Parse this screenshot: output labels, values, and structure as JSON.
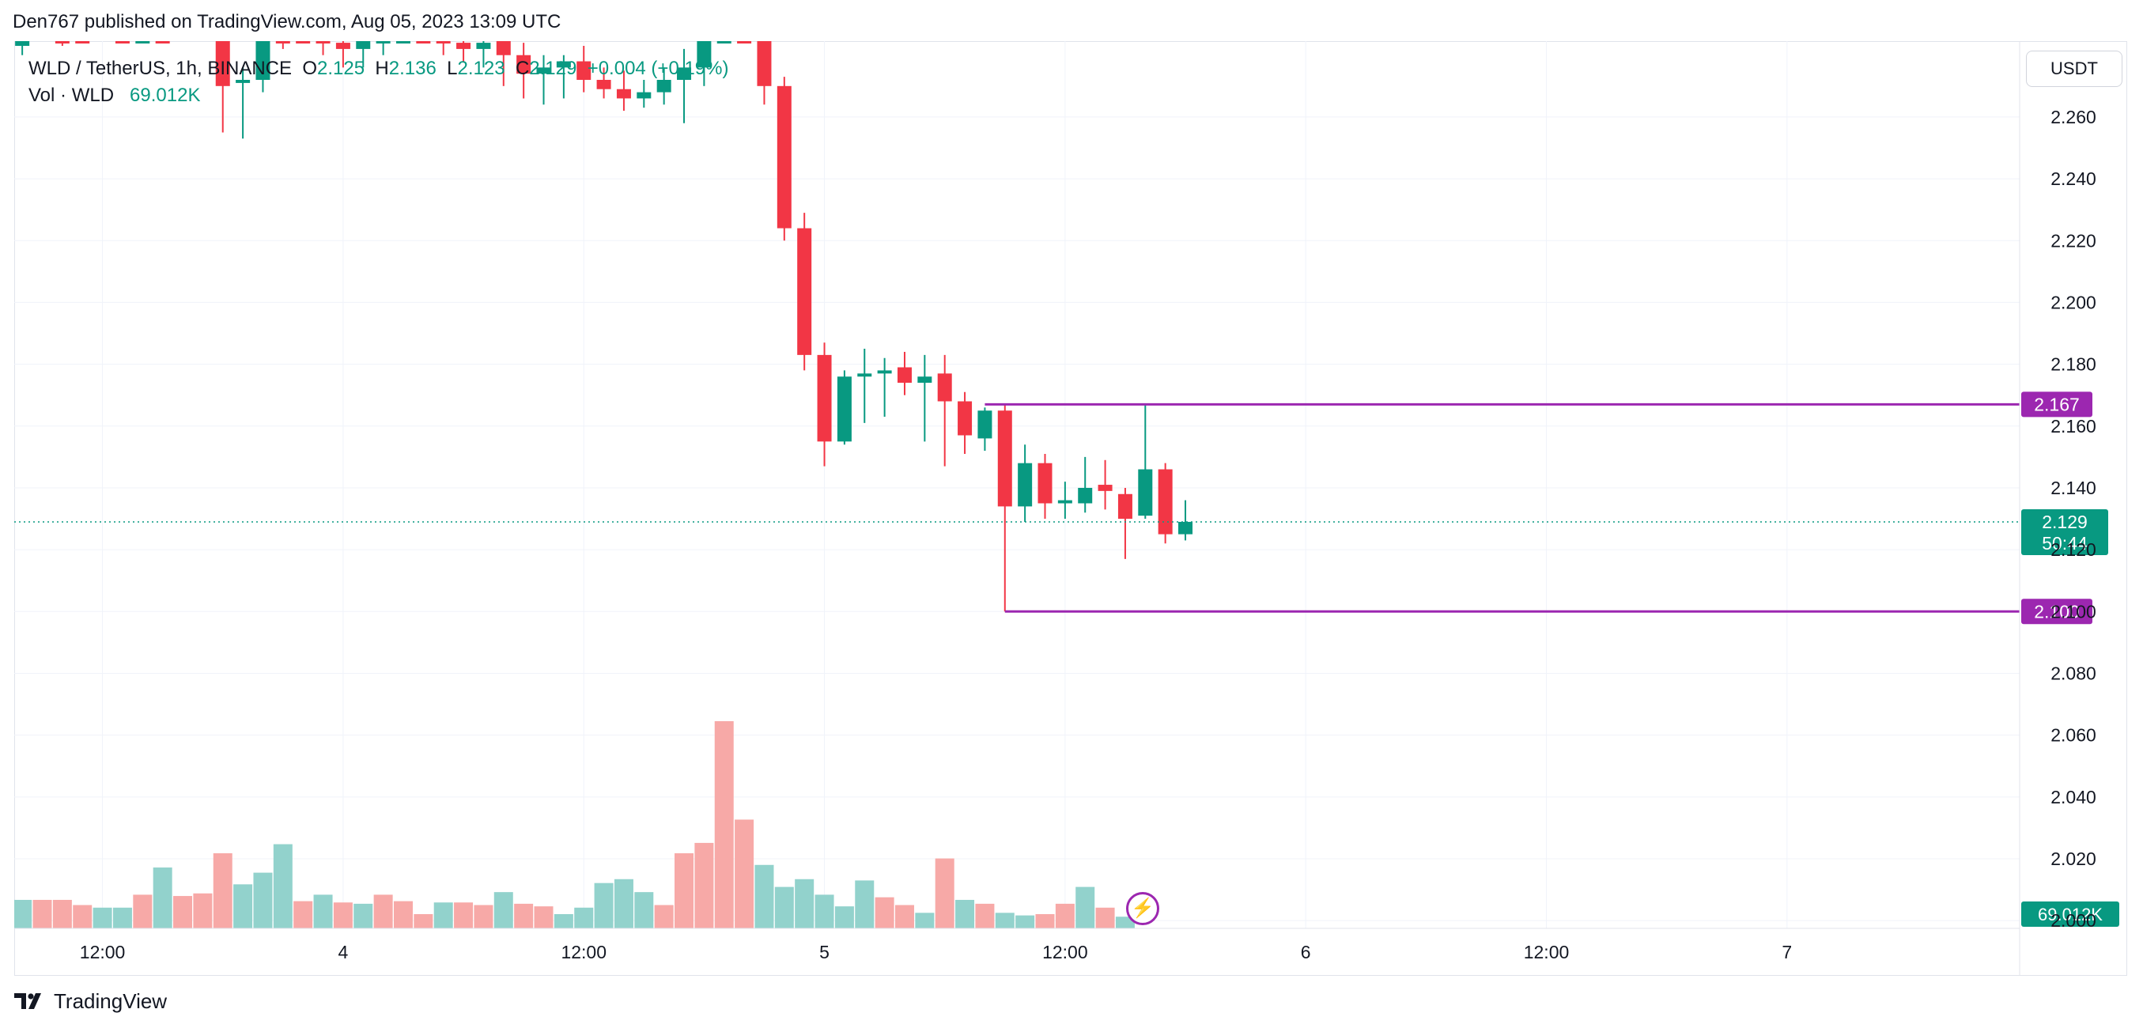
{
  "header": {
    "published_text": "Den767 published on TradingView.com, Aug 05, 2023 13:09 UTC"
  },
  "legend": {
    "symbol": "WLD / TetherUS, 1h, BINANCE",
    "o_label": "O",
    "o_value": "2.125",
    "h_label": "H",
    "h_value": "2.136",
    "l_label": "L",
    "l_value": "2.123",
    "c_label": "C",
    "c_value": "2.129",
    "change": "+0.004 (+0.19%)",
    "vol_label": "Vol · WLD",
    "vol_value": "69.012K"
  },
  "currency_button": "USDT",
  "footer": {
    "brand": "TradingView"
  },
  "colors": {
    "up": "#089981",
    "down": "#f23645",
    "vol_up": "#92d2cc",
    "vol_down": "#f7a9a7",
    "level": "#9c27b0",
    "grid": "#f0f3fa",
    "text": "#131722"
  },
  "icons": {
    "logo": "tradingview-logo-icon",
    "bolt": "lightning-bolt-icon"
  },
  "chart_data": {
    "type": "candlestick",
    "y_axis": {
      "ticks": [
        "2.000",
        "2.020",
        "2.040",
        "2.060",
        "2.080",
        "2.100",
        "2.120",
        "2.140",
        "2.160",
        "2.180",
        "2.200",
        "2.220",
        "2.240",
        "2.260"
      ],
      "tick_values": [
        2.0,
        2.02,
        2.04,
        2.06,
        2.08,
        2.1,
        2.12,
        2.14,
        2.16,
        2.18,
        2.2,
        2.22,
        2.24,
        2.26
      ],
      "range": [
        1.998,
        2.283
      ]
    },
    "x_axis": {
      "labels": [
        "12:00",
        "4",
        "12:00",
        "5",
        "12:00",
        "6",
        "12:00",
        "7"
      ],
      "label_hours": [
        12,
        24,
        36,
        48,
        60,
        72,
        84,
        96
      ],
      "range_hours": [
        7.6,
        107.6
      ]
    },
    "candles": [
      {
        "t": 8,
        "o": 2.283,
        "h": 2.288,
        "l": 2.28,
        "c": 2.285
      },
      {
        "t": 10,
        "o": 2.29,
        "h": 2.294,
        "l": 2.283,
        "c": 2.288
      },
      {
        "t": 11,
        "o": 2.296,
        "h": 2.298,
        "l": 2.289,
        "c": 2.292
      },
      {
        "t": 13,
        "o": 2.293,
        "h": 2.297,
        "l": 2.286,
        "c": 2.29
      },
      {
        "t": 14,
        "o": 2.293,
        "h": 2.3,
        "l": 2.289,
        "c": 2.296
      },
      {
        "t": 15,
        "o": 2.297,
        "h": 2.3,
        "l": 2.288,
        "c": 2.293
      },
      {
        "t": 18,
        "o": 2.298,
        "h": 2.3,
        "l": 2.255,
        "c": 2.27
      },
      {
        "t": 19,
        "o": 2.271,
        "h": 2.276,
        "l": 2.253,
        "c": 2.272
      },
      {
        "t": 20,
        "o": 2.272,
        "h": 2.3,
        "l": 2.268,
        "c": 2.296
      },
      {
        "t": 21,
        "o": 2.298,
        "h": 2.3,
        "l": 2.282,
        "c": 2.29
      },
      {
        "t": 22,
        "o": 2.29,
        "h": 2.296,
        "l": 2.284,
        "c": 2.288
      },
      {
        "t": 23,
        "o": 2.288,
        "h": 2.294,
        "l": 2.28,
        "c": 2.284
      },
      {
        "t": 24,
        "o": 2.284,
        "h": 2.292,
        "l": 2.276,
        "c": 2.282
      },
      {
        "t": 25,
        "o": 2.282,
        "h": 2.29,
        "l": 2.276,
        "c": 2.286
      },
      {
        "t": 26,
        "o": 2.286,
        "h": 2.294,
        "l": 2.28,
        "c": 2.29
      },
      {
        "t": 27,
        "o": 2.29,
        "h": 2.298,
        "l": 2.286,
        "c": 2.294
      },
      {
        "t": 28,
        "o": 2.294,
        "h": 2.3,
        "l": 2.288,
        "c": 2.29
      },
      {
        "t": 29,
        "o": 2.29,
        "h": 2.296,
        "l": 2.28,
        "c": 2.284
      },
      {
        "t": 30,
        "o": 2.284,
        "h": 2.288,
        "l": 2.278,
        "c": 2.282
      },
      {
        "t": 31,
        "o": 2.282,
        "h": 2.288,
        "l": 2.276,
        "c": 2.284
      },
      {
        "t": 32,
        "o": 2.286,
        "h": 2.292,
        "l": 2.27,
        "c": 2.28
      },
      {
        "t": 33,
        "o": 2.28,
        "h": 2.284,
        "l": 2.266,
        "c": 2.274
      },
      {
        "t": 34,
        "o": 2.274,
        "h": 2.28,
        "l": 2.264,
        "c": 2.276
      },
      {
        "t": 35,
        "o": 2.276,
        "h": 2.28,
        "l": 2.266,
        "c": 2.278
      },
      {
        "t": 36,
        "o": 2.278,
        "h": 2.283,
        "l": 2.268,
        "c": 2.272
      },
      {
        "t": 37,
        "o": 2.272,
        "h": 2.276,
        "l": 2.266,
        "c": 2.269
      },
      {
        "t": 38,
        "o": 2.269,
        "h": 2.275,
        "l": 2.262,
        "c": 2.266
      },
      {
        "t": 39,
        "o": 2.266,
        "h": 2.272,
        "l": 2.263,
        "c": 2.268
      },
      {
        "t": 40,
        "o": 2.268,
        "h": 2.276,
        "l": 2.264,
        "c": 2.272
      },
      {
        "t": 41,
        "o": 2.272,
        "h": 2.282,
        "l": 2.258,
        "c": 2.276
      },
      {
        "t": 42,
        "o": 2.276,
        "h": 2.3,
        "l": 2.27,
        "c": 2.292
      },
      {
        "t": 43,
        "o": 2.292,
        "h": 2.3,
        "l": 2.286,
        "c": 2.298
      },
      {
        "t": 44,
        "o": 2.296,
        "h": 2.3,
        "l": 2.284,
        "c": 2.288
      },
      {
        "t": 45,
        "o": 2.288,
        "h": 2.292,
        "l": 2.264,
        "c": 2.27
      },
      {
        "t": 46,
        "o": 2.27,
        "h": 2.273,
        "l": 2.22,
        "c": 2.224
      },
      {
        "t": 47,
        "o": 2.224,
        "h": 2.229,
        "l": 2.178,
        "c": 2.183
      },
      {
        "t": 48,
        "o": 2.183,
        "h": 2.187,
        "l": 2.147,
        "c": 2.155
      },
      {
        "t": 49,
        "o": 2.155,
        "h": 2.178,
        "l": 2.154,
        "c": 2.176
      },
      {
        "t": 50,
        "o": 2.176,
        "h": 2.185,
        "l": 2.161,
        "c": 2.177
      },
      {
        "t": 51,
        "o": 2.177,
        "h": 2.182,
        "l": 2.163,
        "c": 2.178
      },
      {
        "t": 52,
        "o": 2.179,
        "h": 2.184,
        "l": 2.17,
        "c": 2.174
      },
      {
        "t": 53,
        "o": 2.174,
        "h": 2.183,
        "l": 2.155,
        "c": 2.176
      },
      {
        "t": 54,
        "o": 2.177,
        "h": 2.183,
        "l": 2.147,
        "c": 2.168
      },
      {
        "t": 55,
        "o": 2.168,
        "h": 2.171,
        "l": 2.151,
        "c": 2.157
      },
      {
        "t": 56,
        "o": 2.156,
        "h": 2.166,
        "l": 2.152,
        "c": 2.165
      },
      {
        "t": 57,
        "o": 2.165,
        "h": 2.167,
        "l": 2.1,
        "c": 2.134
      },
      {
        "t": 58,
        "o": 2.134,
        "h": 2.154,
        "l": 2.129,
        "c": 2.148
      },
      {
        "t": 59,
        "o": 2.148,
        "h": 2.151,
        "l": 2.13,
        "c": 2.135
      },
      {
        "t": 60,
        "o": 2.135,
        "h": 2.142,
        "l": 2.13,
        "c": 2.136
      },
      {
        "t": 61,
        "o": 2.135,
        "h": 2.15,
        "l": 2.132,
        "c": 2.14
      },
      {
        "t": 62,
        "o": 2.141,
        "h": 2.149,
        "l": 2.133,
        "c": 2.139
      },
      {
        "t": 63,
        "o": 2.138,
        "h": 2.14,
        "l": 2.117,
        "c": 2.13
      },
      {
        "t": 64,
        "o": 2.131,
        "h": 2.167,
        "l": 2.13,
        "c": 2.146
      },
      {
        "t": 65,
        "o": 2.146,
        "h": 2.148,
        "l": 2.122,
        "c": 2.125
      },
      {
        "t": 66,
        "o": 2.125,
        "h": 2.136,
        "l": 2.123,
        "c": 2.129
      }
    ],
    "volume": [
      {
        "t": 8,
        "v": 2.2,
        "dir": "up"
      },
      {
        "t": 9,
        "v": 2.2,
        "dir": "down"
      },
      {
        "t": 10,
        "v": 2.2,
        "dir": "down"
      },
      {
        "t": 11,
        "v": 1.8,
        "dir": "down"
      },
      {
        "t": 12,
        "v": 1.6,
        "dir": "up"
      },
      {
        "t": 13,
        "v": 1.6,
        "dir": "up"
      },
      {
        "t": 14,
        "v": 2.6,
        "dir": "down"
      },
      {
        "t": 15,
        "v": 4.7,
        "dir": "up"
      },
      {
        "t": 16,
        "v": 2.5,
        "dir": "down"
      },
      {
        "t": 17,
        "v": 2.7,
        "dir": "down"
      },
      {
        "t": 18,
        "v": 5.8,
        "dir": "down"
      },
      {
        "t": 19,
        "v": 3.4,
        "dir": "up"
      },
      {
        "t": 20,
        "v": 4.3,
        "dir": "up"
      },
      {
        "t": 21,
        "v": 6.5,
        "dir": "up"
      },
      {
        "t": 22,
        "v": 2.1,
        "dir": "down"
      },
      {
        "t": 23,
        "v": 2.6,
        "dir": "up"
      },
      {
        "t": 24,
        "v": 2.0,
        "dir": "down"
      },
      {
        "t": 25,
        "v": 1.9,
        "dir": "up"
      },
      {
        "t": 26,
        "v": 2.6,
        "dir": "down"
      },
      {
        "t": 27,
        "v": 2.1,
        "dir": "down"
      },
      {
        "t": 28,
        "v": 1.1,
        "dir": "down"
      },
      {
        "t": 29,
        "v": 2.0,
        "dir": "up"
      },
      {
        "t": 30,
        "v": 2.0,
        "dir": "down"
      },
      {
        "t": 31,
        "v": 1.8,
        "dir": "down"
      },
      {
        "t": 32,
        "v": 2.8,
        "dir": "up"
      },
      {
        "t": 33,
        "v": 1.9,
        "dir": "down"
      },
      {
        "t": 34,
        "v": 1.7,
        "dir": "down"
      },
      {
        "t": 35,
        "v": 1.1,
        "dir": "up"
      },
      {
        "t": 36,
        "v": 1.6,
        "dir": "up"
      },
      {
        "t": 37,
        "v": 3.5,
        "dir": "up"
      },
      {
        "t": 38,
        "v": 3.8,
        "dir": "up"
      },
      {
        "t": 39,
        "v": 2.8,
        "dir": "up"
      },
      {
        "t": 40,
        "v": 1.8,
        "dir": "down"
      },
      {
        "t": 41,
        "v": 5.8,
        "dir": "down"
      },
      {
        "t": 42,
        "v": 6.6,
        "dir": "down"
      },
      {
        "t": 43,
        "v": 16.0,
        "dir": "down"
      },
      {
        "t": 44,
        "v": 8.4,
        "dir": "down"
      },
      {
        "t": 45,
        "v": 4.9,
        "dir": "up"
      },
      {
        "t": 46,
        "v": 3.2,
        "dir": "up"
      },
      {
        "t": 47,
        "v": 3.8,
        "dir": "up"
      },
      {
        "t": 48,
        "v": 2.6,
        "dir": "up"
      },
      {
        "t": 49,
        "v": 1.7,
        "dir": "up"
      },
      {
        "t": 50,
        "v": 3.7,
        "dir": "up"
      },
      {
        "t": 51,
        "v": 2.4,
        "dir": "down"
      },
      {
        "t": 52,
        "v": 1.8,
        "dir": "down"
      },
      {
        "t": 53,
        "v": 1.2,
        "dir": "up"
      },
      {
        "t": 54,
        "v": 5.4,
        "dir": "down"
      },
      {
        "t": 55,
        "v": 2.2,
        "dir": "up"
      },
      {
        "t": 56,
        "v": 1.9,
        "dir": "down"
      },
      {
        "t": 57,
        "v": 1.2,
        "dir": "up"
      },
      {
        "t": 58,
        "v": 1.0,
        "dir": "up"
      },
      {
        "t": 59,
        "v": 1.1,
        "dir": "down"
      },
      {
        "t": 60,
        "v": 1.9,
        "dir": "down"
      },
      {
        "t": 61,
        "v": 3.2,
        "dir": "up"
      },
      {
        "t": 62,
        "v": 1.6,
        "dir": "down"
      },
      {
        "t": 63,
        "v": 0.9,
        "dir": "up"
      }
    ],
    "volume_max": 16.0,
    "levels": [
      {
        "price": 2.167,
        "label": "2.167",
        "from_t": 56
      },
      {
        "price": 2.1,
        "label": "2.100",
        "from_t": 57
      }
    ],
    "last_price": {
      "price": 2.129,
      "label": "2.129",
      "countdown": "50:44"
    },
    "volume_label": "69.012K"
  }
}
